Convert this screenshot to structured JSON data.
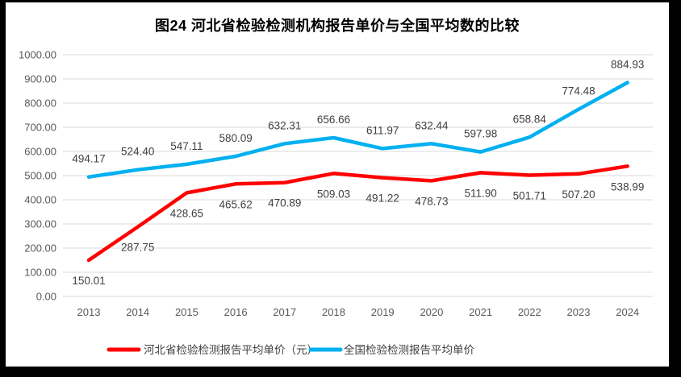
{
  "chart_data": {
    "type": "line",
    "title": "图24  河北省检验检测机构报告单价与全国平均数的比较",
    "categories": [
      "2013",
      "2014",
      "2015",
      "2016",
      "2017",
      "2018",
      "2019",
      "2020",
      "2021",
      "2022",
      "2023",
      "2024"
    ],
    "series": [
      {
        "id": "hebei",
        "name": "河北省检验检测报告平均单价（元）",
        "color": "#FF0000",
        "values": [
          150.01,
          287.75,
          428.65,
          465.62,
          470.89,
          509.03,
          491.22,
          478.73,
          511.9,
          501.71,
          507.2,
          538.99
        ],
        "labels": [
          "150.01",
          "287.75",
          "428.65",
          "465.62",
          "470.89",
          "509.03",
          "491.22",
          "478.73",
          "511.90",
          "501.71",
          "507.20",
          "538.99"
        ],
        "label_position": "below"
      },
      {
        "id": "national",
        "name": "全国检验检测报告平均单价",
        "color": "#00B0F0",
        "values": [
          494.17,
          524.4,
          547.11,
          580.09,
          632.31,
          656.66,
          611.97,
          632.44,
          597.98,
          658.84,
          774.48,
          884.93
        ],
        "labels": [
          "494.17",
          "524.40",
          "547.11",
          "580.09",
          "632.31",
          "656.66",
          "611.97",
          "632.44",
          "597.98",
          "658.84",
          "774.48",
          "884.93"
        ],
        "label_position": "above"
      }
    ],
    "ylim": [
      0,
      1000
    ],
    "yticks": [
      {
        "value": 0,
        "label": "0.00"
      },
      {
        "value": 100,
        "label": "100.00"
      },
      {
        "value": 200,
        "label": "200.00"
      },
      {
        "value": 300,
        "label": "300.00"
      },
      {
        "value": 400,
        "label": "400.00"
      },
      {
        "value": 500,
        "label": "500.00"
      },
      {
        "value": 600,
        "label": "600.00"
      },
      {
        "value": 700,
        "label": "700.00"
      },
      {
        "value": 800,
        "label": "800.00"
      },
      {
        "value": 900,
        "label": "900.00"
      },
      {
        "value": 1000,
        "label": "1000.00"
      }
    ],
    "grid": true,
    "legend_position": "bottom",
    "colors": {
      "gridline": "#D9D9D9",
      "axis_label": "#595959",
      "data_label": "#404040",
      "legend_label": "#404040",
      "title": "#000000",
      "chart_background": "#FFFFFF",
      "frame_background": "#000000"
    }
  }
}
